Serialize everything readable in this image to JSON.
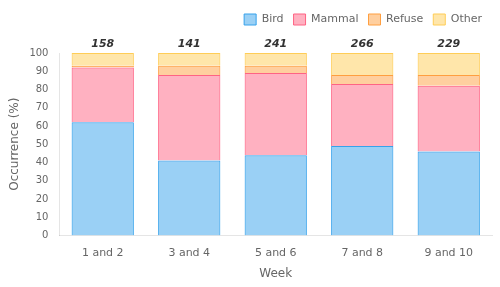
{
  "chart_data": {
    "type": "bar",
    "stacked": true,
    "categories": [
      "1 and 2",
      "3 and 4",
      "5 and 6",
      "7 and 8",
      "9 and 10"
    ],
    "series": [
      {
        "name": "Bird",
        "values": [
          62,
          41,
          44,
          49,
          46
        ]
      },
      {
        "name": "Mammal",
        "values": [
          30,
          47,
          45,
          34,
          36
        ]
      },
      {
        "name": "Refuse",
        "values": [
          1,
          5,
          4,
          5,
          6
        ]
      },
      {
        "name": "Other",
        "values": [
          7,
          7,
          7,
          12,
          12
        ]
      }
    ],
    "annotations": [
      {
        "category": "1 and 2",
        "text": "158"
      },
      {
        "category": "3 and 4",
        "text": "141"
      },
      {
        "category": "5 and 6",
        "text": "241"
      },
      {
        "category": "7 and 8",
        "text": "266"
      },
      {
        "category": "9 and 10",
        "text": "229"
      }
    ],
    "xlabel": "Week",
    "ylabel": "Occurrence (%)",
    "ylim": [
      0,
      100
    ],
    "yticks": [
      0,
      10,
      20,
      30,
      40,
      50,
      60,
      70,
      80,
      90,
      100
    ],
    "grid": false,
    "legend": "upper right"
  }
}
